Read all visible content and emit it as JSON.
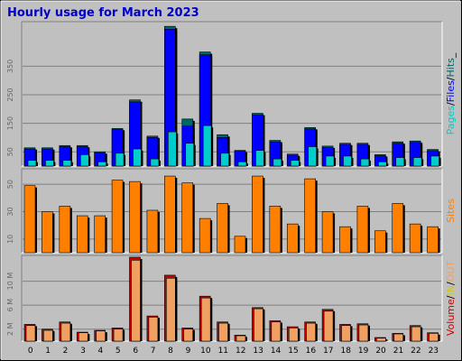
{
  "title": "Hourly usage for March 2023",
  "colors": {
    "background": "#c0c0c0",
    "hits": "#006666",
    "files": "#0000ff",
    "pages": "#00cccc",
    "sites": "#ff8000",
    "volume": "#cc0000",
    "in": "#ffcc66",
    "out": "#f0a060"
  },
  "chart_data": [
    {
      "type": "bar",
      "panel": "hits-files-pages",
      "categories": [
        "0",
        "1",
        "2",
        "3",
        "4",
        "5",
        "6",
        "7",
        "8",
        "9",
        "10",
        "11",
        "12",
        "13",
        "14",
        "15",
        "16",
        "17",
        "18",
        "19",
        "20",
        "21",
        "22",
        "23"
      ],
      "series": [
        {
          "name": "Hits",
          "values": [
            64,
            64,
            72,
            72,
            50,
            132,
            232,
            105,
            490,
            165,
            400,
            110,
            55,
            185,
            90,
            42,
            135,
            70,
            80,
            80,
            40,
            85,
            88,
            58
          ]
        },
        {
          "name": "Files",
          "values": [
            60,
            60,
            68,
            68,
            46,
            128,
            225,
            100,
            480,
            140,
            390,
            100,
            52,
            180,
            85,
            38,
            130,
            65,
            76,
            76,
            36,
            80,
            83,
            54
          ]
        },
        {
          "name": "Pages",
          "values": [
            20,
            20,
            20,
            40,
            15,
            45,
            60,
            25,
            120,
            80,
            142,
            45,
            15,
            55,
            25,
            20,
            68,
            35,
            35,
            25,
            15,
            30,
            30,
            35
          ]
        }
      ],
      "legend": [
        "Pages",
        "Files",
        "Hits"
      ],
      "legend_separators": [
        "/",
        "/",
        "_"
      ],
      "yticks": [
        50,
        150,
        250,
        350
      ],
      "ylim": [
        0,
        500
      ]
    },
    {
      "type": "bar",
      "panel": "sites",
      "categories": [
        "0",
        "1",
        "2",
        "3",
        "4",
        "5",
        "6",
        "7",
        "8",
        "9",
        "10",
        "11",
        "12",
        "13",
        "14",
        "15",
        "16",
        "17",
        "18",
        "19",
        "20",
        "21",
        "22",
        "23"
      ],
      "series": [
        {
          "name": "Sites",
          "values": [
            49,
            30,
            34,
            27,
            27,
            53,
            52,
            31,
            56,
            51,
            25,
            36,
            12,
            56,
            34,
            21,
            54,
            30,
            19,
            34,
            16,
            36,
            21,
            19
          ]
        }
      ],
      "legend": [
        "Sites"
      ],
      "yticks": [
        10,
        30,
        50
      ],
      "ylim": [
        0,
        60
      ]
    },
    {
      "type": "bar",
      "panel": "volume",
      "categories": [
        "0",
        "1",
        "2",
        "3",
        "4",
        "5",
        "6",
        "7",
        "8",
        "9",
        "10",
        "11",
        "12",
        "13",
        "14",
        "15",
        "16",
        "17",
        "18",
        "19",
        "20",
        "21",
        "22",
        "23"
      ],
      "series": [
        {
          "name": "Volume",
          "values": [
            2.8,
            2.0,
            3.2,
            1.5,
            1.8,
            2.2,
            14.0,
            4.2,
            11.0,
            2.2,
            7.5,
            3.2,
            1.0,
            5.6,
            3.4,
            2.4,
            3.2,
            5.3,
            2.8,
            2.9,
            0.6,
            1.3,
            2.6,
            1.4
          ]
        },
        {
          "name": "IN",
          "values": [
            0.04,
            0.03,
            0.05,
            0.02,
            0.03,
            0.03,
            0.2,
            0.06,
            0.15,
            0.03,
            0.1,
            0.04,
            0.02,
            0.08,
            0.05,
            0.04,
            0.05,
            0.07,
            0.04,
            0.04,
            0.01,
            0.02,
            0.04,
            0.02
          ]
        },
        {
          "name": "OUT",
          "values": [
            2.6,
            1.8,
            3.0,
            1.4,
            1.7,
            2.0,
            13.5,
            4.0,
            10.5,
            2.0,
            7.2,
            3.0,
            0.9,
            5.4,
            3.2,
            2.2,
            3.0,
            5.0,
            2.6,
            2.7,
            0.5,
            1.2,
            2.4,
            1.3
          ]
        }
      ],
      "legend": [
        "Volume",
        "IN",
        "OUT"
      ],
      "legend_separators": [
        "/",
        "/"
      ],
      "yticks": [
        "2 M",
        "6 M",
        "10 M"
      ],
      "ytick_values": [
        2,
        6,
        10
      ],
      "ylim": [
        0,
        14
      ]
    }
  ]
}
